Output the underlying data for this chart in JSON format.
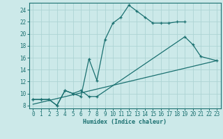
{
  "xlabel": "Humidex (Indice chaleur)",
  "bg_color": "#cce9e9",
  "grid_color": "#add4d4",
  "line_color": "#1a7070",
  "xlim": [
    -0.5,
    23.5
  ],
  "ylim": [
    7.5,
    25.2
  ],
  "xticks": [
    0,
    1,
    2,
    3,
    4,
    5,
    6,
    7,
    8,
    9,
    10,
    11,
    12,
    13,
    14,
    15,
    16,
    17,
    18,
    19,
    20,
    21,
    22,
    23
  ],
  "yticks": [
    8,
    10,
    12,
    14,
    16,
    18,
    20,
    22,
    24
  ],
  "line1_x": [
    0,
    1,
    2,
    3,
    4,
    5,
    6,
    7,
    8,
    9,
    10,
    11,
    12,
    13,
    14,
    15,
    16,
    17,
    18,
    19
  ],
  "line1_y": [
    9,
    9,
    9,
    8,
    10.5,
    10,
    9.5,
    15.8,
    12.2,
    19.0,
    21.8,
    22.8,
    24.8,
    23.8,
    22.8,
    21.8,
    21.8,
    21.8,
    22.0,
    22.0
  ],
  "line2_x": [
    0,
    1,
    2,
    3,
    4,
    5,
    6,
    7,
    8,
    19,
    20,
    21,
    23
  ],
  "line2_y": [
    9,
    9,
    9,
    8,
    10.5,
    10,
    10.5,
    9.5,
    9.5,
    19.5,
    18.2,
    16.2,
    15.5
  ],
  "line3_x": [
    0,
    23
  ],
  "line3_y": [
    8.2,
    15.5
  ]
}
